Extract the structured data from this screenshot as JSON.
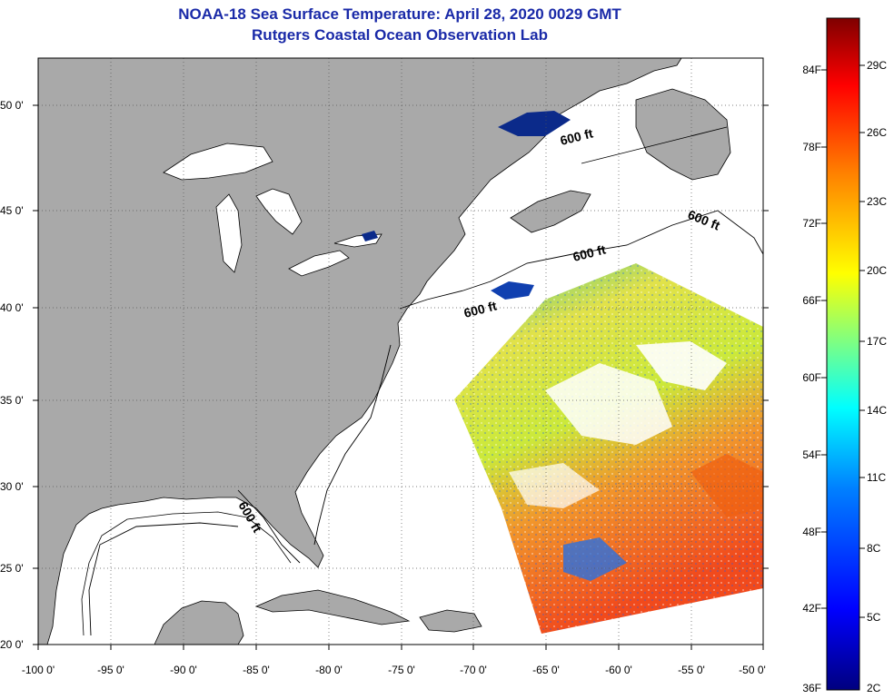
{
  "header": {
    "title": "NOAA-18 Sea Surface Temperature:  April 28, 2020 0029 GMT",
    "subtitle": "Rutgers Coastal Ocean Observation Lab"
  },
  "map": {
    "lat_labels": [
      "50 0'",
      "45 0'",
      "40 0'",
      "35 0'",
      "30 0'",
      "25 0'",
      "20 0'"
    ],
    "lon_labels": [
      "-100 0'",
      "-95 0'",
      "-90 0'",
      "-85 0'",
      "-80 0'",
      "-75 0'",
      "-70 0'",
      "-65 0'",
      "-60 0'",
      "-55 0'",
      "-50 0'"
    ],
    "contour_labels": [
      "600 ft",
      "600 ft",
      "600 ft",
      "600 ft",
      "600 ft"
    ],
    "colors": {
      "land": "#a9a9a9",
      "ocean": "#ffffff",
      "lake": "#ffffff",
      "title": "#1a2aa8"
    }
  },
  "colorbar": {
    "f_labels": [
      "84F",
      "78F",
      "72F",
      "66F",
      "60F",
      "54F",
      "48F",
      "42F",
      "36F"
    ],
    "c_labels": [
      "29C",
      "26C",
      "23C",
      "20C",
      "17C",
      "14C",
      "11C",
      "8C",
      "5C",
      "2C"
    ],
    "range_f": [
      36,
      88
    ],
    "gradient": [
      "#00007f",
      "#0000ff",
      "#0080ff",
      "#00ffff",
      "#80ff80",
      "#ffff00",
      "#ff8000",
      "#ff0000",
      "#7f0000"
    ]
  }
}
